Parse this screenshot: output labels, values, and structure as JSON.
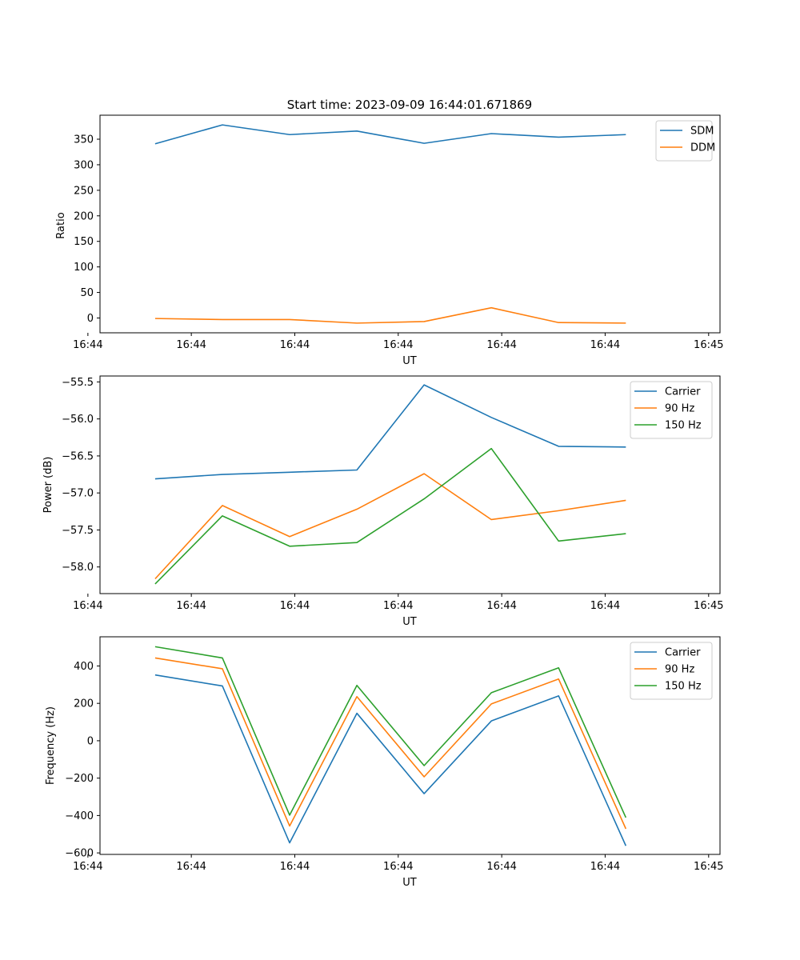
{
  "colors": {
    "blue": "#1f77b4",
    "orange": "#ff7f0e",
    "green": "#2ca02c"
  },
  "chart_data": [
    {
      "type": "line",
      "title": "Start time: 2023-09-09 16:44:01.671869",
      "xlabel": "UT",
      "ylabel": "Ratio",
      "x": [
        1,
        2,
        3,
        4,
        5,
        6,
        7,
        8
      ],
      "xlim": [
        0.18,
        9.4
      ],
      "x_ticks": [
        {
          "v": 0,
          "label": "16:44"
        },
        {
          "v": 1.538,
          "label": "16:44"
        },
        {
          "v": 3.077,
          "label": "16:44"
        },
        {
          "v": 4.615,
          "label": "16:44"
        },
        {
          "v": 6.154,
          "label": "16:44"
        },
        {
          "v": 7.692,
          "label": "16:44"
        },
        {
          "v": 9.231,
          "label": "16:45"
        }
      ],
      "ylim": [
        -29,
        397
      ],
      "y_ticks": [
        0,
        50,
        100,
        150,
        200,
        250,
        300,
        350
      ],
      "legend_position": "top-right",
      "series": [
        {
          "name": "SDM",
          "color": "#1f77b4",
          "values": [
            341,
            378,
            359,
            366,
            342,
            361,
            354,
            359
          ]
        },
        {
          "name": "DDM",
          "color": "#ff7f0e",
          "values": [
            -1,
            -3,
            -3,
            -10,
            -7,
            20,
            -9,
            -10
          ]
        }
      ]
    },
    {
      "type": "line",
      "title": "",
      "xlabel": "UT",
      "ylabel": "Power (dB)",
      "x": [
        1,
        2,
        3,
        4,
        5,
        6,
        7,
        8
      ],
      "xlim": [
        0.18,
        9.4
      ],
      "x_ticks": [
        {
          "v": 0,
          "label": "16:44"
        },
        {
          "v": 1.538,
          "label": "16:44"
        },
        {
          "v": 3.077,
          "label": "16:44"
        },
        {
          "v": 4.615,
          "label": "16:44"
        },
        {
          "v": 6.154,
          "label": "16:44"
        },
        {
          "v": 7.692,
          "label": "16:44"
        },
        {
          "v": 9.231,
          "label": "16:45"
        }
      ],
      "ylim": [
        -58.36,
        -55.42
      ],
      "y_ticks": [
        -58.0,
        -57.5,
        -57.0,
        -56.5,
        -56.0,
        -55.5
      ],
      "y_tick_labels": [
        "−58.0",
        "−57.5",
        "−57.0",
        "−56.5",
        "−56.0",
        "−55.5"
      ],
      "legend_position": "top-right",
      "series": [
        {
          "name": "Carrier",
          "color": "#1f77b4",
          "values": [
            -56.81,
            -56.75,
            -56.72,
            -56.69,
            -55.54,
            -55.98,
            -56.37,
            -56.38
          ]
        },
        {
          "name": "90 Hz",
          "color": "#ff7f0e",
          "values": [
            -58.16,
            -57.17,
            -57.59,
            -57.22,
            -56.74,
            -57.36,
            -57.24,
            -57.1
          ]
        },
        {
          "name": "150 Hz",
          "color": "#2ca02c",
          "values": [
            -58.23,
            -57.31,
            -57.72,
            -57.67,
            -57.08,
            -56.4,
            -57.65,
            -57.55
          ]
        }
      ]
    },
    {
      "type": "line",
      "title": "",
      "xlabel": "UT",
      "ylabel": "Frequency (Hz)",
      "x": [
        1,
        2,
        3,
        4,
        5,
        6,
        7,
        8
      ],
      "xlim": [
        0.18,
        9.4
      ],
      "x_ticks": [
        {
          "v": 0,
          "label": "16:44"
        },
        {
          "v": 1.538,
          "label": "16:44"
        },
        {
          "v": 3.077,
          "label": "16:44"
        },
        {
          "v": 4.615,
          "label": "16:44"
        },
        {
          "v": 6.154,
          "label": "16:44"
        },
        {
          "v": 7.692,
          "label": "16:44"
        },
        {
          "v": 9.231,
          "label": "16:45"
        }
      ],
      "ylim": [
        -608,
        556
      ],
      "y_ticks": [
        -600,
        -400,
        -200,
        0,
        200,
        400
      ],
      "y_tick_labels": [
        "−600",
        "−400",
        "−200",
        "0",
        "200",
        "400"
      ],
      "legend_position": "top-right",
      "series": [
        {
          "name": "Carrier",
          "color": "#1f77b4",
          "values": [
            352,
            293,
            -546,
            147,
            -283,
            106,
            240,
            -562
          ]
        },
        {
          "name": "90 Hz",
          "color": "#ff7f0e",
          "values": [
            443,
            385,
            -456,
            236,
            -193,
            197,
            330,
            -471
          ]
        },
        {
          "name": "150 Hz",
          "color": "#2ca02c",
          "values": [
            503,
            443,
            -398,
            296,
            -133,
            257,
            390,
            -411
          ]
        }
      ]
    }
  ]
}
